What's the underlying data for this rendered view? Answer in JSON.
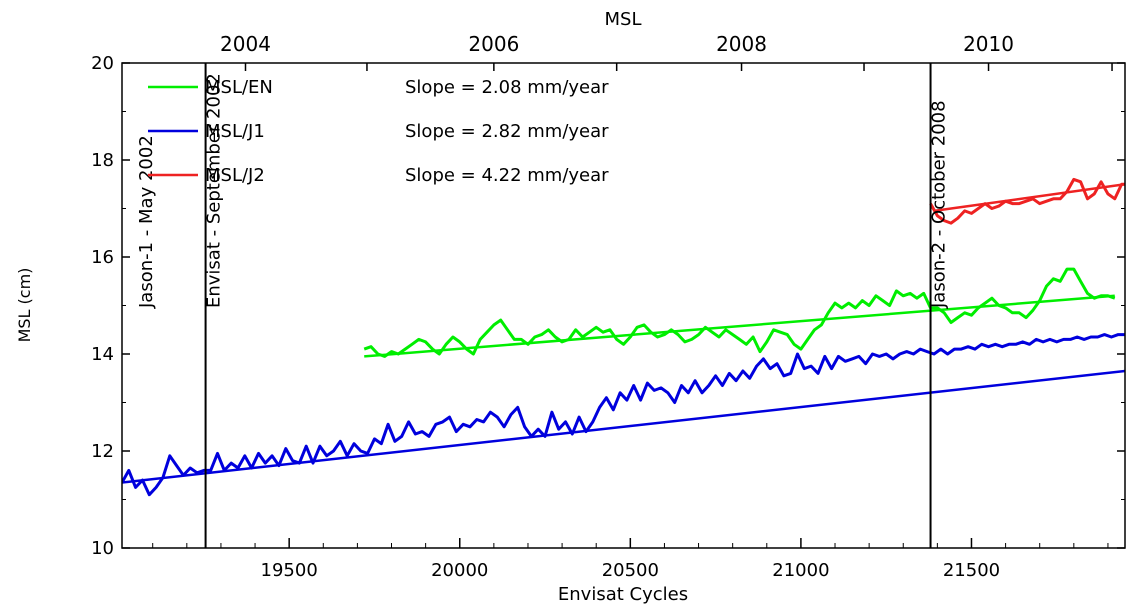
{
  "chart_data": {
    "type": "line",
    "title": "MSL",
    "xlabel": "Envisat Cycles",
    "ylabel": "MSL (cm)",
    "xlim": [
      19010,
      21950
    ],
    "ylim": [
      10,
      20
    ],
    "x_ticks": [
      19500,
      20000,
      20500,
      21000,
      21500
    ],
    "x_tick_labels": [
      "19500",
      "20000",
      "20500",
      "21000",
      "21500"
    ],
    "y_ticks": [
      10,
      12,
      14,
      16,
      18,
      20
    ],
    "y_tick_labels": [
      "10",
      "12",
      "14",
      "16",
      "18",
      "20"
    ],
    "top_axis": {
      "ticks": [
        19372,
        19728,
        20100,
        20460,
        20826,
        21185,
        21550,
        21912
      ],
      "labels": [
        {
          "x": 19372,
          "text": "2004"
        },
        {
          "x": 20100,
          "text": "2006"
        },
        {
          "x": 20826,
          "text": "2008"
        },
        {
          "x": 21550,
          "text": "2010"
        }
      ]
    },
    "vertical_markers": [
      {
        "x": 18980,
        "text": "Jason-1 - May 2002"
      },
      {
        "x": 19255,
        "text": "Envisat - September 2002"
      },
      {
        "x": 21380,
        "text": "Jason-2 - October 2008"
      }
    ],
    "legend": [
      {
        "label": "MSL/EN",
        "slope": "Slope = 2.08 mm/year",
        "color": "#00ee00"
      },
      {
        "label": "MSL/J1",
        "slope": "Slope = 2.82 mm/year",
        "color": "#0000dd"
      },
      {
        "label": "MSL/J2",
        "slope": "Slope = 4.22 mm/year",
        "color": "#ee2222"
      }
    ],
    "legend_position": "top-left",
    "series": [
      {
        "name": "MSL/J1",
        "color": "#0000dd",
        "x": [
          19010,
          19030,
          19050,
          19070,
          19090,
          19110,
          19130,
          19150,
          19170,
          19190,
          19210,
          19230,
          19250,
          19270,
          19290,
          19310,
          19330,
          19350,
          19370,
          19390,
          19410,
          19430,
          19450,
          19470,
          19490,
          19510,
          19530,
          19550,
          19570,
          19590,
          19610,
          19630,
          19650,
          19670,
          19690,
          19710,
          19730,
          19750,
          19770,
          19790,
          19810,
          19830,
          19850,
          19870,
          19890,
          19910,
          19930,
          19950,
          19970,
          19990,
          20010,
          20030,
          20050,
          20070,
          20090,
          20110,
          20130,
          20150,
          20170,
          20190,
          20210,
          20230,
          20250,
          20270,
          20290,
          20310,
          20330,
          20350,
          20370,
          20390,
          20410,
          20430,
          20450,
          20470,
          20490,
          20510,
          20530,
          20550,
          20570,
          20590,
          20610,
          20630,
          20650,
          20670,
          20690,
          20710,
          20730,
          20750,
          20770,
          20790,
          20810,
          20830,
          20850,
          20870,
          20890,
          20910,
          20930,
          20950,
          20970,
          20990,
          21010,
          21030,
          21050,
          21070,
          21090,
          21110,
          21130,
          21150,
          21170,
          21190,
          21210,
          21230,
          21250,
          21270,
          21290,
          21310,
          21330,
          21350,
          21370,
          21390,
          21410,
          21430,
          21450,
          21470,
          21490,
          21510,
          21530,
          21550,
          21570,
          21590,
          21610,
          21630,
          21650,
          21670,
          21690,
          21710,
          21730,
          21750,
          21770,
          21790,
          21810,
          21830,
          21850,
          21870,
          21890,
          21910,
          21930,
          21950
        ],
        "values": [
          11.35,
          11.6,
          11.25,
          11.4,
          11.1,
          11.25,
          11.45,
          11.9,
          11.7,
          11.5,
          11.65,
          11.55,
          11.6,
          11.6,
          11.95,
          11.6,
          11.75,
          11.65,
          11.9,
          11.65,
          11.95,
          11.75,
          11.9,
          11.7,
          12.05,
          11.8,
          11.75,
          12.1,
          11.75,
          12.1,
          11.9,
          12.0,
          12.2,
          11.9,
          12.15,
          12.0,
          11.95,
          12.25,
          12.15,
          12.55,
          12.2,
          12.3,
          12.6,
          12.35,
          12.4,
          12.3,
          12.55,
          12.6,
          12.7,
          12.4,
          12.55,
          12.5,
          12.65,
          12.6,
          12.8,
          12.7,
          12.5,
          12.75,
          12.9,
          12.5,
          12.3,
          12.45,
          12.3,
          12.8,
          12.45,
          12.6,
          12.35,
          12.7,
          12.4,
          12.6,
          12.9,
          13.1,
          12.85,
          13.2,
          13.05,
          13.35,
          13.05,
          13.4,
          13.25,
          13.3,
          13.2,
          13.0,
          13.35,
          13.2,
          13.45,
          13.2,
          13.35,
          13.55,
          13.35,
          13.6,
          13.45,
          13.65,
          13.5,
          13.75,
          13.9,
          13.7,
          13.8,
          13.55,
          13.6,
          14.0,
          13.7,
          13.75,
          13.6,
          13.95,
          13.7,
          13.95,
          13.85,
          13.9,
          13.95,
          13.8,
          14.0,
          13.95,
          14.0,
          13.9,
          14.0,
          14.05,
          14.0,
          14.1,
          14.05,
          14.0,
          14.1,
          14.0,
          14.1,
          14.1,
          14.15,
          14.1,
          14.2,
          14.15,
          14.2,
          14.15,
          14.2,
          14.2,
          14.25,
          14.2,
          14.3,
          14.25,
          14.3,
          14.25,
          14.3,
          14.3,
          14.35,
          14.3,
          14.35,
          14.35,
          14.4,
          14.35,
          14.4,
          14.4
        ]
      },
      {
        "name": "MSL/EN",
        "color": "#00ee00",
        "x": [
          19720,
          19740,
          19760,
          19780,
          19800,
          19820,
          19840,
          19860,
          19880,
          19900,
          19920,
          19940,
          19960,
          19980,
          20000,
          20020,
          20040,
          20060,
          20080,
          20100,
          20120,
          20140,
          20160,
          20180,
          20200,
          20220,
          20240,
          20260,
          20280,
          20300,
          20320,
          20340,
          20360,
          20380,
          20400,
          20420,
          20440,
          20460,
          20480,
          20500,
          20520,
          20540,
          20560,
          20580,
          20600,
          20620,
          20640,
          20660,
          20680,
          20700,
          20720,
          20740,
          20760,
          20780,
          20800,
          20820,
          20840,
          20860,
          20880,
          20900,
          20920,
          20940,
          20960,
          20980,
          21000,
          21020,
          21040,
          21060,
          21080,
          21100,
          21120,
          21140,
          21160,
          21180,
          21200,
          21220,
          21240,
          21260,
          21280,
          21300,
          21320,
          21340,
          21360,
          21380,
          21400,
          21420,
          21440,
          21460,
          21480,
          21500,
          21520,
          21540,
          21560,
          21580,
          21600,
          21620,
          21640,
          21660,
          21680,
          21700,
          21720,
          21740,
          21760,
          21780,
          21800,
          21820,
          21840,
          21860,
          21880,
          21900,
          21920
        ],
        "values": [
          14.1,
          14.15,
          14.0,
          13.95,
          14.05,
          14.0,
          14.1,
          14.2,
          14.3,
          14.25,
          14.1,
          14.0,
          14.2,
          14.35,
          14.25,
          14.1,
          14.0,
          14.3,
          14.45,
          14.6,
          14.7,
          14.5,
          14.3,
          14.3,
          14.2,
          14.35,
          14.4,
          14.5,
          14.35,
          14.25,
          14.3,
          14.5,
          14.35,
          14.45,
          14.55,
          14.45,
          14.5,
          14.3,
          14.2,
          14.35,
          14.55,
          14.6,
          14.45,
          14.35,
          14.4,
          14.5,
          14.4,
          14.25,
          14.3,
          14.4,
          14.55,
          14.45,
          14.35,
          14.5,
          14.4,
          14.3,
          14.2,
          14.35,
          14.05,
          14.25,
          14.5,
          14.45,
          14.4,
          14.2,
          14.1,
          14.3,
          14.5,
          14.6,
          14.85,
          15.05,
          14.95,
          15.05,
          14.95,
          15.1,
          15.0,
          15.2,
          15.1,
          15.0,
          15.3,
          15.2,
          15.25,
          15.15,
          15.25,
          14.95,
          14.95,
          14.85,
          14.65,
          14.75,
          14.85,
          14.8,
          14.95,
          15.05,
          15.15,
          15.0,
          14.95,
          14.85,
          14.85,
          14.75,
          14.9,
          15.1,
          15.4,
          15.55,
          15.5,
          15.75,
          15.75,
          15.5,
          15.25,
          15.15,
          15.2,
          15.2,
          15.15
        ]
      },
      {
        "name": "MSL/J2",
        "color": "#ee2222",
        "x": [
          21380,
          21400,
          21420,
          21440,
          21460,
          21480,
          21500,
          21520,
          21540,
          21560,
          21580,
          21600,
          21620,
          21640,
          21660,
          21680,
          21700,
          21720,
          21740,
          21760,
          21780,
          21800,
          21820,
          21840,
          21860,
          21880,
          21900,
          21920,
          21940,
          21950
        ],
        "values": [
          17.1,
          16.85,
          16.75,
          16.7,
          16.8,
          16.95,
          16.9,
          17.0,
          17.1,
          17.0,
          17.05,
          17.15,
          17.1,
          17.1,
          17.15,
          17.2,
          17.1,
          17.15,
          17.2,
          17.2,
          17.35,
          17.6,
          17.55,
          17.2,
          17.3,
          17.55,
          17.3,
          17.2,
          17.5,
          17.5
        ]
      }
    ],
    "trend_lines": [
      {
        "name": "MSL/J1",
        "color": "#0000dd",
        "x": [
          19010,
          21950
        ],
        "y": [
          11.35,
          13.65
        ]
      },
      {
        "name": "MSL/EN",
        "color": "#00ee00",
        "x": [
          19720,
          21920
        ],
        "y": [
          13.95,
          15.2
        ]
      },
      {
        "name": "MSL/J2",
        "color": "#ee2222",
        "x": [
          21390,
          21950
        ],
        "y": [
          16.95,
          17.5
        ]
      }
    ],
    "grid": false
  }
}
